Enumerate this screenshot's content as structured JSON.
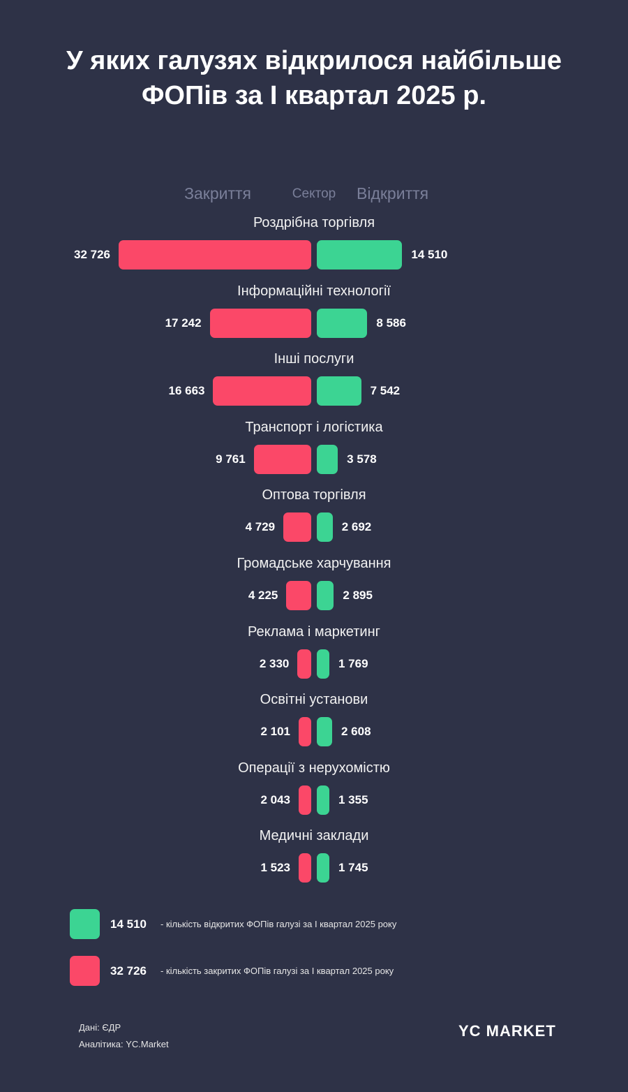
{
  "header": {
    "title_line1": "У яких галузях відкрилося найбільше",
    "title_line2": "ФОПів за І квартал 2025 р."
  },
  "columns": {
    "closed": "Закриття",
    "sector": "Сектор",
    "opened": "Відкриття"
  },
  "chart_data": {
    "type": "bar",
    "orientation": "horizontal-diverging",
    "title": "У яких галузях відкрилося найбільше ФОПів за І квартал 2025 р.",
    "categories": [
      "Роздрібна торгівля",
      "Інформаційні технології",
      "Інші послуги",
      "Транспорт і логістика",
      "Оптова торгівля",
      "Громадське харчування",
      "Реклама і маркетинг",
      "Освітні установи",
      "Операції з нерухомістю",
      "Медичні заклади"
    ],
    "series": [
      {
        "name": "Закриття",
        "color": "#fb4868",
        "values": [
          32726,
          17242,
          16663,
          9761,
          4729,
          4225,
          2330,
          2101,
          2043,
          1523
        ],
        "labels": [
          "32 726",
          "17 242",
          "16 663",
          "9 761",
          "4 729",
          "4 225",
          "2 330",
          "2 101",
          "2 043",
          "1 523"
        ]
      },
      {
        "name": "Відкриття",
        "color": "#3cd493",
        "values": [
          14510,
          8586,
          7542,
          3578,
          2692,
          2895,
          1769,
          2608,
          1355,
          1745
        ],
        "labels": [
          "14 510",
          "8 586",
          "7 542",
          "3 578",
          "2 692",
          "2 895",
          "1 769",
          "2 608",
          "1 355",
          "1 745"
        ]
      }
    ]
  },
  "legend": [
    {
      "color": "#3cd493",
      "value": "14 510",
      "text": "- кількість відкритих ФОПів галузі за І квартал 2025 року"
    },
    {
      "color": "#fb4868",
      "value": "32 726",
      "text": "- кількість закритих ФОПів галузі за І квартал 2025 року"
    }
  ],
  "footer": {
    "source": "Дані: ЄДР",
    "analytics": "Аналітика: YC.Market",
    "logo": "YC MARKET"
  }
}
